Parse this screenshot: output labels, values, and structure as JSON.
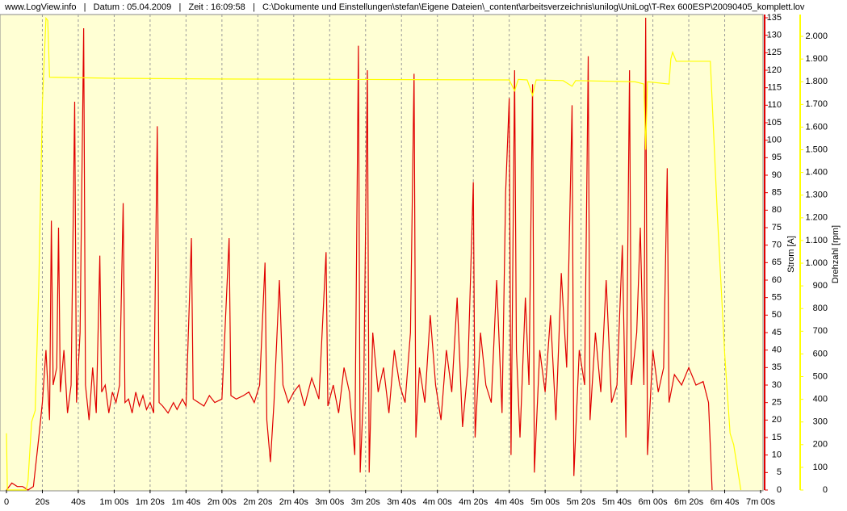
{
  "chart_data": {
    "type": "line",
    "title": "www.LogView.info   |   Datum : 05.04.2009   |   Zeit : 16:09:58   |   C:\\Dokumente und Einstellungen\\stefan\\Eigene Dateien\\_content\\arbeitsverzeichnis\\unilog\\UniLog\\T-Rex 600ESP\\20090405_komplett.lov",
    "ylabel": "Strom [A]",
    "y2label": "Drehzahl [rpm]",
    "xlim": [
      0,
      420
    ],
    "ylim": [
      0,
      135
    ],
    "y2lim": [
      0,
      2082
    ],
    "grid": true,
    "background": "#ffffd4",
    "xticks": [
      0,
      {
        "value": 20,
        "label": "20s"
      },
      {
        "value": 40,
        "label": "40s"
      },
      {
        "value": 60,
        "label": "1m 00s"
      },
      {
        "value": 80,
        "label": "1m 20s"
      },
      {
        "value": 100,
        "label": "1m 40s"
      },
      {
        "value": 120,
        "label": "2m 00s"
      },
      {
        "value": 140,
        "label": "2m 20s"
      },
      {
        "value": 160,
        "label": "2m 40s"
      },
      {
        "value": 180,
        "label": "3m 00s"
      },
      {
        "value": 200,
        "label": "3m 20s"
      },
      {
        "value": 220,
        "label": "3m 40s"
      },
      {
        "value": 240,
        "label": "4m 00s"
      },
      {
        "value": 260,
        "label": "4m 20s"
      },
      {
        "value": 280,
        "label": "4m 40s"
      },
      {
        "value": 300,
        "label": "5m 00s"
      },
      {
        "value": 320,
        "label": "5m 20s"
      },
      {
        "value": 340,
        "label": "5m 40s"
      },
      {
        "value": 360,
        "label": "6m 00s"
      },
      {
        "value": 380,
        "label": "6m 20s"
      },
      {
        "value": 400,
        "label": "6m 40s"
      },
      {
        "value": 420,
        "label": "7m 00s"
      }
    ],
    "yticks": [
      0,
      5,
      10,
      15,
      20,
      25,
      30,
      35,
      40,
      45,
      50,
      55,
      60,
      65,
      70,
      75,
      80,
      85,
      90,
      95,
      100,
      105,
      110,
      115,
      120,
      125,
      130,
      135
    ],
    "y2ticks": [
      0,
      100,
      200,
      300,
      400,
      500,
      600,
      700,
      800,
      900,
      {
        "value": 1000,
        "label": "1.000"
      },
      {
        "value": 1100,
        "label": "1.100"
      },
      {
        "value": 1200,
        "label": "1.200"
      },
      {
        "value": 1300,
        "label": "1.300"
      },
      {
        "value": 1400,
        "label": "1.400"
      },
      {
        "value": 1500,
        "label": "1.500"
      },
      {
        "value": 1600,
        "label": "1.600"
      },
      {
        "value": 1700,
        "label": "1.700"
      },
      {
        "value": 1800,
        "label": "1.800"
      },
      {
        "value": 1900,
        "label": "1.900"
      },
      {
        "value": 2000,
        "label": "2.000"
      }
    ],
    "series": [
      {
        "color": "#e00000",
        "x": [
          0,
          3,
          6,
          9,
          12,
          15,
          18,
          20,
          22,
          24,
          25,
          26,
          28,
          29,
          30,
          32,
          34,
          36,
          38,
          39,
          41,
          43,
          44,
          46,
          48,
          50,
          52,
          53,
          55,
          57,
          59,
          61,
          63,
          65,
          66,
          68,
          70,
          72,
          74,
          76,
          78,
          80,
          82,
          84,
          85,
          87,
          90,
          93,
          95,
          98,
          100,
          103,
          104,
          107,
          110,
          113,
          116,
          120,
          124,
          125,
          128,
          132,
          135,
          138,
          141,
          144,
          145,
          147,
          149,
          152,
          154,
          157,
          160,
          163,
          166,
          170,
          174,
          178,
          179,
          182,
          185,
          188,
          191,
          194,
          196,
          197,
          199,
          201,
          202,
          204,
          207,
          210,
          213,
          216,
          219,
          222,
          225,
          227,
          228,
          230,
          233,
          236,
          239,
          242,
          245,
          248,
          251,
          254,
          257,
          260,
          261,
          264,
          267,
          270,
          273,
          276,
          278,
          280,
          281,
          283,
          284,
          286,
          289,
          291,
          293,
          294,
          297,
          300,
          303,
          306,
          309,
          312,
          315,
          316,
          319,
          322,
          324,
          325,
          328,
          331,
          334,
          337,
          340,
          343,
          345,
          347,
          348,
          351,
          353,
          355,
          356,
          357,
          360,
          363,
          366,
          368,
          369,
          372,
          376,
          380,
          384,
          388,
          391,
          393
        ],
        "values": [
          0,
          2,
          1,
          1,
          0,
          1,
          15,
          25,
          40,
          20,
          77,
          30,
          35,
          75,
          28,
          40,
          22,
          30,
          111,
          25,
          45,
          132,
          30,
          20,
          35,
          22,
          67,
          28,
          30,
          22,
          28,
          25,
          30,
          82,
          25,
          26,
          22,
          28,
          24,
          27,
          23,
          25,
          22,
          104,
          25,
          24,
          22,
          25,
          23,
          26,
          24,
          72,
          26,
          25,
          24,
          27,
          25,
          26,
          72,
          27,
          26,
          27,
          28,
          25,
          30,
          65,
          20,
          8,
          25,
          60,
          30,
          25,
          28,
          30,
          24,
          32,
          26,
          68,
          24,
          30,
          22,
          35,
          28,
          10,
          127,
          5,
          30,
          120,
          5,
          45,
          28,
          35,
          22,
          40,
          30,
          25,
          45,
          119,
          15,
          35,
          25,
          50,
          30,
          20,
          40,
          28,
          55,
          18,
          35,
          88,
          15,
          45,
          30,
          25,
          60,
          22,
          85,
          112,
          10,
          120,
          40,
          15,
          55,
          30,
          116,
          5,
          40,
          28,
          50,
          20,
          62,
          35,
          110,
          4,
          40,
          30,
          124,
          20,
          45,
          28,
          60,
          25,
          30,
          70,
          15,
          120,
          30,
          45,
          75,
          30,
          135,
          10,
          40,
          28,
          35,
          92,
          25,
          33,
          30,
          35,
          30,
          31,
          25,
          0
        ]
      },
      {
        "color": "#ffff00",
        "axis": "y2",
        "x": [
          0,
          0.5,
          11,
          12,
          14,
          16,
          18,
          20,
          22,
          23,
          24,
          60,
          120,
          200,
          280,
          283,
          285,
          290,
          293,
          295,
          310,
          315,
          317,
          350,
          355,
          356,
          357,
          369,
          370,
          371,
          373,
          392,
          396,
          400,
          403,
          405,
          407,
          409
        ],
        "values": [
          250,
          0,
          0,
          40,
          300,
          350,
          900,
          1700,
          2080,
          2070,
          1820,
          1815,
          1812,
          1810,
          1808,
          1760,
          1810,
          1808,
          1740,
          1808,
          1805,
          1780,
          1805,
          1800,
          1790,
          1500,
          1800,
          1790,
          1900,
          1930,
          1890,
          1890,
          1200,
          600,
          250,
          200,
          100,
          0
        ]
      }
    ]
  }
}
